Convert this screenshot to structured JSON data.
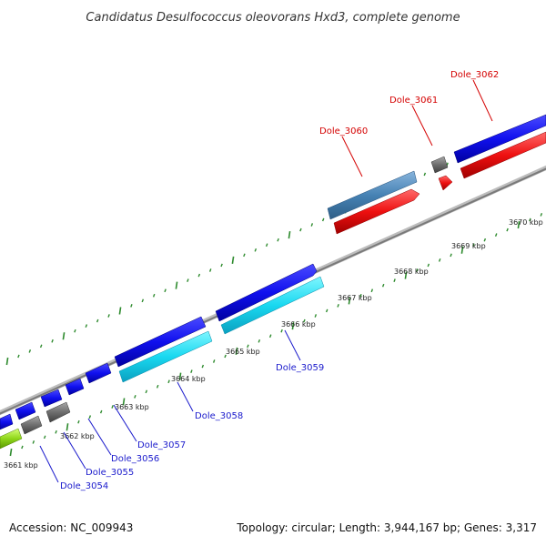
{
  "title": "Candidatus Desulfococcus oleovorans Hxd3, complete genome",
  "footer": {
    "accession": "Accession: NC_009943",
    "summary": "Topology: circular; Length: 3,944,167 bp; Genes: 3,317"
  },
  "colors": {
    "backbone": "#8c8c8c",
    "tick": "#2e8b2e",
    "forward_label": "#d40000",
    "reverse_label": "#1a1acc"
  },
  "scale_ticks": [
    {
      "label": "3661 kbp"
    },
    {
      "label": "3662 kbp"
    },
    {
      "label": "3663 kbp"
    },
    {
      "label": "3664 kbp"
    },
    {
      "label": "3665 kbp"
    },
    {
      "label": "3666 kbp"
    },
    {
      "label": "3667 kbp"
    },
    {
      "label": "3668 kbp"
    },
    {
      "label": "3669 kbp"
    },
    {
      "label": "3670 kbp"
    }
  ],
  "gene_labels": [
    {
      "id": "Dole_3054",
      "strand": "reverse"
    },
    {
      "id": "Dole_3055",
      "strand": "reverse"
    },
    {
      "id": "Dole_3056",
      "strand": "reverse"
    },
    {
      "id": "Dole_3057",
      "strand": "reverse"
    },
    {
      "id": "Dole_3058",
      "strand": "reverse"
    },
    {
      "id": "Dole_3059",
      "strand": "reverse"
    },
    {
      "id": "Dole_3060",
      "strand": "forward"
    },
    {
      "id": "Dole_3061",
      "strand": "forward"
    },
    {
      "id": "Dole_3062",
      "strand": "forward"
    }
  ]
}
